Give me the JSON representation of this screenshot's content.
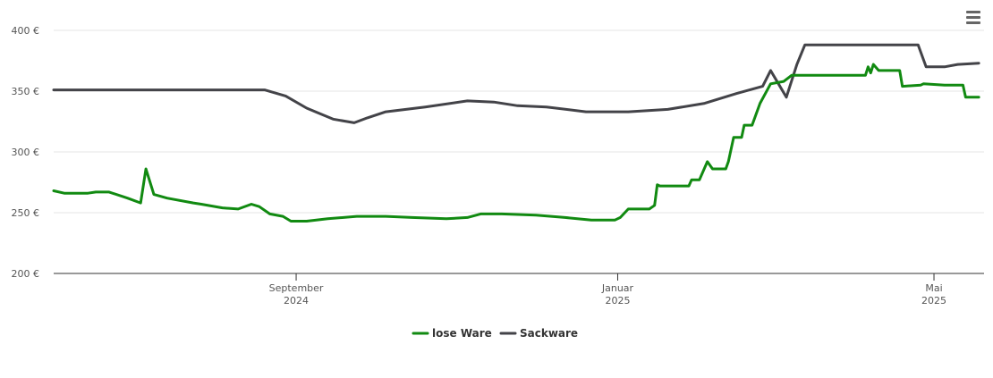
{
  "menu": {
    "icon": "hamburger-menu-icon"
  },
  "chart_data": {
    "type": "line",
    "title": "",
    "xlabel": "",
    "ylabel": "",
    "ylim": [
      200,
      400
    ],
    "yticks": [
      200,
      250,
      300,
      350,
      400
    ],
    "ytick_labels": [
      "200 €",
      "250 €",
      "300 €",
      "350 €",
      "400 €"
    ],
    "xlim": [
      "2024-06-01",
      "2025-05-20"
    ],
    "xticks": [
      {
        "date": "2024-09-01",
        "line1": "September",
        "line2": "2024"
      },
      {
        "date": "2025-01-01",
        "line1": "Januar",
        "line2": "2025"
      },
      {
        "date": "2025-05-01",
        "line1": "Mai",
        "line2": "2025"
      }
    ],
    "grid": true,
    "legend_position": "bottom-center",
    "series": [
      {
        "name": "lose Ware",
        "color": "#118a11",
        "points": [
          [
            "2024-06-01",
            268
          ],
          [
            "2024-06-05",
            266
          ],
          [
            "2024-06-14",
            266
          ],
          [
            "2024-06-17",
            267
          ],
          [
            "2024-06-22",
            267
          ],
          [
            "2024-06-29",
            262
          ],
          [
            "2024-07-04",
            258
          ],
          [
            "2024-07-06",
            286
          ],
          [
            "2024-07-09",
            265
          ],
          [
            "2024-07-14",
            262
          ],
          [
            "2024-07-24",
            258
          ],
          [
            "2024-07-27",
            257
          ],
          [
            "2024-08-04",
            254
          ],
          [
            "2024-08-10",
            253
          ],
          [
            "2024-08-15",
            257
          ],
          [
            "2024-08-18",
            255
          ],
          [
            "2024-08-22",
            249
          ],
          [
            "2024-08-27",
            247
          ],
          [
            "2024-08-30",
            243
          ],
          [
            "2024-09-05",
            243
          ],
          [
            "2024-09-13",
            245
          ],
          [
            "2024-09-24",
            247
          ],
          [
            "2024-10-05",
            247
          ],
          [
            "2024-10-15",
            246
          ],
          [
            "2024-10-28",
            245
          ],
          [
            "2024-11-05",
            246
          ],
          [
            "2024-11-10",
            249
          ],
          [
            "2024-11-18",
            249
          ],
          [
            "2024-12-01",
            248
          ],
          [
            "2024-12-12",
            246
          ],
          [
            "2024-12-22",
            244
          ],
          [
            "2024-12-30",
            244
          ],
          [
            "2024-12-31",
            244
          ],
          [
            "2025-01-02",
            246
          ],
          [
            "2025-01-05",
            253
          ],
          [
            "2025-01-09",
            253
          ],
          [
            "2025-01-13",
            253
          ],
          [
            "2025-01-15",
            256
          ],
          [
            "2025-01-16",
            273
          ],
          [
            "2025-01-17",
            272
          ],
          [
            "2025-01-25",
            272
          ],
          [
            "2025-01-28",
            272
          ],
          [
            "2025-01-29",
            277
          ],
          [
            "2025-02-01",
            277
          ],
          [
            "2025-02-04",
            292
          ],
          [
            "2025-02-06",
            286
          ],
          [
            "2025-02-11",
            286
          ],
          [
            "2025-02-12",
            292
          ],
          [
            "2025-02-14",
            312
          ],
          [
            "2025-02-17",
            312
          ],
          [
            "2025-02-18",
            322
          ],
          [
            "2025-02-21",
            322
          ],
          [
            "2025-02-24",
            340
          ],
          [
            "2025-02-28",
            356
          ],
          [
            "2025-03-05",
            358
          ],
          [
            "2025-03-08",
            363
          ],
          [
            "2025-03-22",
            363
          ],
          [
            "2025-03-29",
            363
          ],
          [
            "2025-04-05",
            363
          ],
          [
            "2025-04-06",
            370
          ],
          [
            "2025-04-07",
            365
          ],
          [
            "2025-04-08",
            372
          ],
          [
            "2025-04-10",
            367
          ],
          [
            "2025-04-14",
            367
          ],
          [
            "2025-04-18",
            367
          ],
          [
            "2025-04-19",
            354
          ],
          [
            "2025-04-26",
            355
          ],
          [
            "2025-04-27",
            356
          ],
          [
            "2025-05-05",
            355
          ],
          [
            "2025-05-12",
            355
          ],
          [
            "2025-05-13",
            345
          ],
          [
            "2025-05-18",
            345
          ]
        ]
      },
      {
        "name": "Sackware",
        "color": "#434348",
        "points": [
          [
            "2024-06-01",
            351
          ],
          [
            "2024-07-25",
            351
          ],
          [
            "2024-08-20",
            351
          ],
          [
            "2024-08-28",
            346
          ],
          [
            "2024-09-05",
            336
          ],
          [
            "2024-09-15",
            327
          ],
          [
            "2024-09-23",
            324
          ],
          [
            "2024-09-28",
            328
          ],
          [
            "2024-10-05",
            333
          ],
          [
            "2024-10-20",
            337
          ],
          [
            "2024-11-05",
            342
          ],
          [
            "2024-11-15",
            341
          ],
          [
            "2024-11-24",
            338
          ],
          [
            "2024-12-05",
            337
          ],
          [
            "2024-12-20",
            333
          ],
          [
            "2025-01-05",
            333
          ],
          [
            "2025-01-20",
            335
          ],
          [
            "2025-02-03",
            340
          ],
          [
            "2025-02-15",
            348
          ],
          [
            "2025-02-25",
            354
          ],
          [
            "2025-02-28",
            367
          ],
          [
            "2025-03-03",
            356
          ],
          [
            "2025-03-06",
            345
          ],
          [
            "2025-03-10",
            372
          ],
          [
            "2025-03-13",
            388
          ],
          [
            "2025-03-20",
            388
          ],
          [
            "2025-04-10",
            388
          ],
          [
            "2025-04-25",
            388
          ],
          [
            "2025-04-28",
            370
          ],
          [
            "2025-05-05",
            370
          ],
          [
            "2025-05-10",
            372
          ],
          [
            "2025-05-18",
            373
          ]
        ]
      }
    ]
  }
}
